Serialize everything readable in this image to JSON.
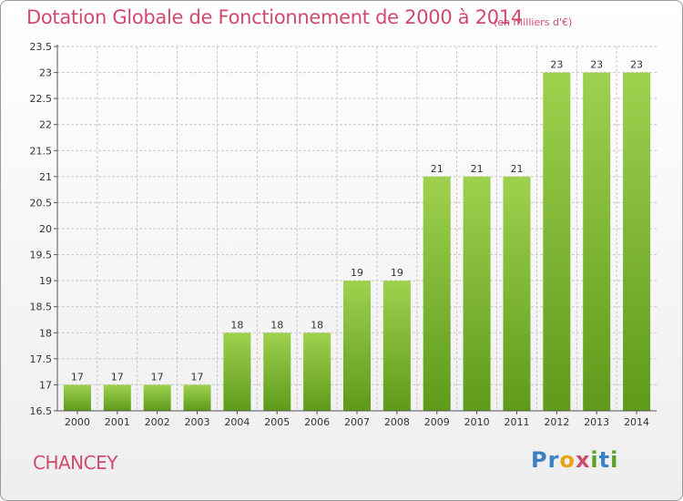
{
  "header": {
    "title": "Dotation Globale de Fonctionnement de 2000 à 2014",
    "subtitle": "(en milliers d'€)"
  },
  "footer": {
    "commune": "CHANCEY",
    "logo": "Proxiti"
  },
  "chart_data": {
    "type": "bar",
    "categories": [
      "2000",
      "2001",
      "2002",
      "2003",
      "2004",
      "2005",
      "2006",
      "2007",
      "2008",
      "2009",
      "2010",
      "2011",
      "2012",
      "2013",
      "2014"
    ],
    "values": [
      17,
      17,
      17,
      17,
      18,
      18,
      18,
      19,
      19,
      21,
      21,
      21,
      23,
      23,
      23
    ],
    "data_labels": [
      "17",
      "17",
      "17",
      "17",
      "18",
      "18",
      "18",
      "19",
      "19",
      "21",
      "21",
      "21",
      "23",
      "23",
      "23"
    ],
    "title": "Dotation Globale de Fonctionnement de 2000 à 2014",
    "subtitle": "(en milliers d'€)",
    "ylim": [
      16.5,
      23.5
    ],
    "yticks": [
      "16.5",
      "17",
      "17.5",
      "18",
      "18.5",
      "19",
      "19.5",
      "20",
      "20.5",
      "21",
      "21.5",
      "22",
      "22.5",
      "23",
      "23.5"
    ],
    "grid": true,
    "colors": {
      "bar_top": "#9ed14e",
      "bar_bottom": "#5e9a1a",
      "grid": "#c8c8c8"
    }
  }
}
